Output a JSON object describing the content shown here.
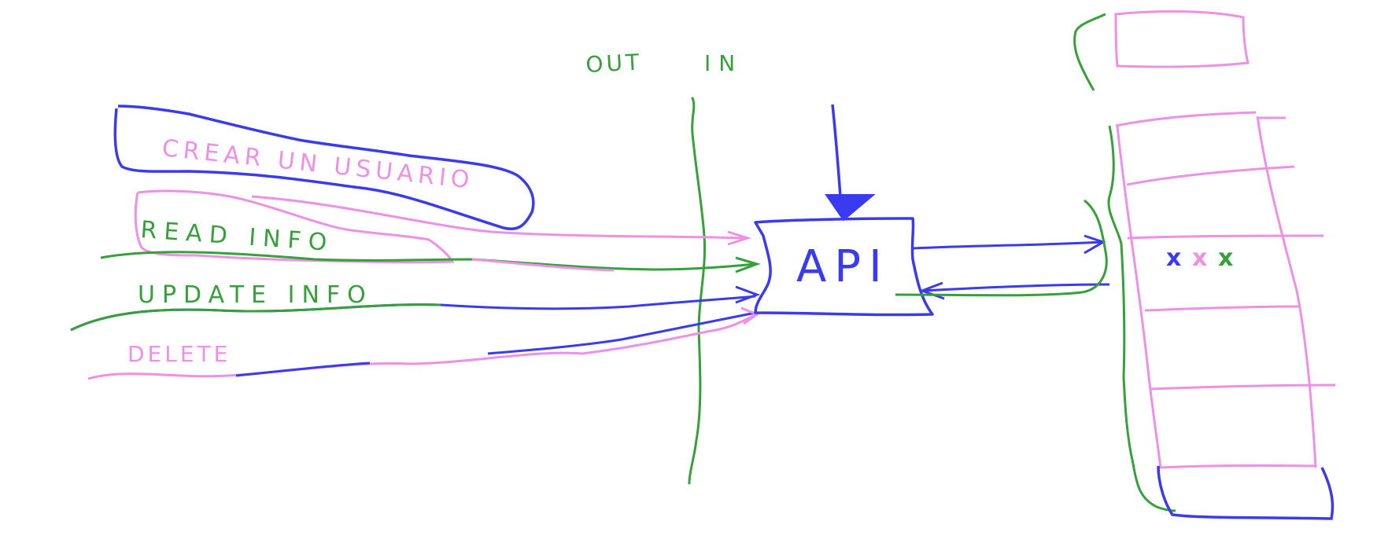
{
  "colors": {
    "blue": "#3a3af0",
    "green": "#36a03a",
    "pink": "#ee90e6",
    "background": "#ffffff"
  },
  "boundary": {
    "out_label": "OUT",
    "in_label": "IN"
  },
  "operations": {
    "create": "CREAR UN USUARIO",
    "read": "READ INFO",
    "update": "UPDATE INFO",
    "delete": "DELETE"
  },
  "api": {
    "label": "API"
  },
  "database": {
    "marks": [
      "x",
      "x",
      "x"
    ]
  }
}
